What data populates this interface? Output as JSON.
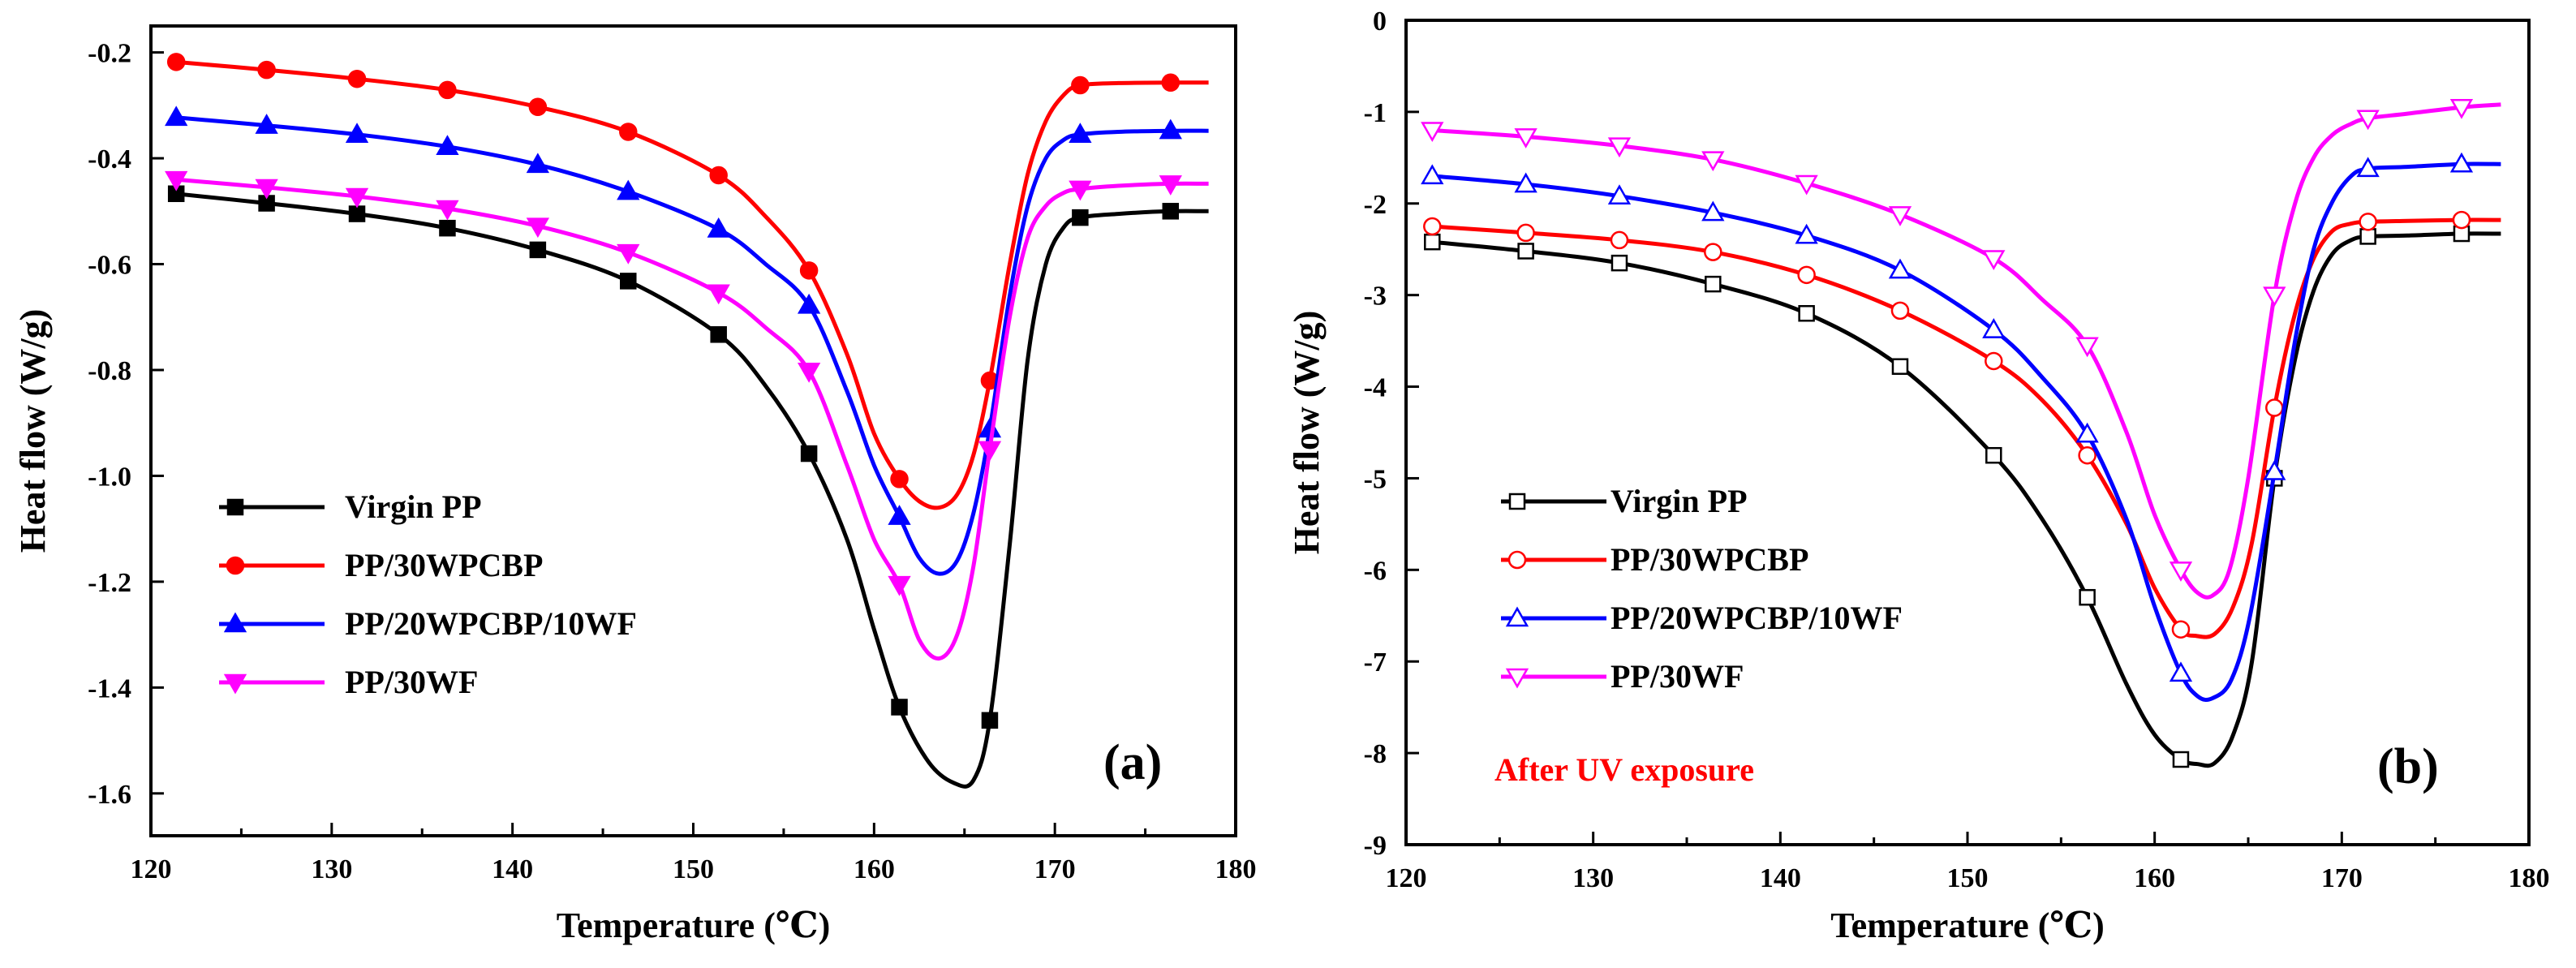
{
  "chart_data": [
    {
      "panel": "(a)",
      "type": "line",
      "title": "",
      "xlabel": "Temperature (℃)",
      "ylabel": "Heat flow (W/g)",
      "xlim": [
        120,
        180
      ],
      "ylim": [
        -1.68,
        -0.15
      ],
      "x_ticks": [
        120,
        130,
        140,
        150,
        160,
        170,
        180
      ],
      "x_tick_labels": [
        "120",
        "130",
        "140",
        "150",
        "160",
        "170",
        "180"
      ],
      "y_ticks": [
        -0.2,
        -0.4,
        -0.6,
        -0.8,
        -1.0,
        -1.2,
        -1.4,
        -1.6
      ],
      "y_tick_labels": [
        "-0.2",
        "-0.4",
        "-0.6",
        "-0.8",
        "-1.0",
        "-1.2",
        "-1.4",
        "-1.6"
      ],
      "legend_position": "bottom-left",
      "annotations": [],
      "series": [
        {
          "name": "Virgin PP",
          "color": "#000000",
          "marker": "square",
          "filled": true,
          "x": [
            121.4,
            126.4,
            131.4,
            136.4,
            141.4,
            146.4,
            151.4,
            154,
            156.4,
            158.5,
            160,
            161.4,
            163,
            164.4,
            165.5,
            166.4,
            167.5,
            168.5,
            169.5,
            170.5,
            171.4,
            173.5,
            176.4,
            178.5
          ],
          "y": [
            -0.467,
            -0.485,
            -0.505,
            -0.532,
            -0.573,
            -0.632,
            -0.733,
            -0.83,
            -0.958,
            -1.12,
            -1.29,
            -1.437,
            -1.54,
            -1.58,
            -1.575,
            -1.462,
            -1.13,
            -0.78,
            -0.6,
            -0.53,
            -0.512,
            -0.505,
            -0.5,
            -0.5
          ]
        },
        {
          "name": "PP/30WPCBP",
          "color": "#ff0000",
          "marker": "circle",
          "filled": true,
          "x": [
            121.4,
            126.4,
            131.4,
            136.4,
            141.4,
            146.4,
            151.4,
            154,
            156.4,
            158.5,
            160,
            161.4,
            162.5,
            163.6,
            164.6,
            165.5,
            166.4,
            167.5,
            168.5,
            169.5,
            170.5,
            171.4,
            173.5,
            176.4,
            178.5
          ],
          "y": [
            -0.218,
            -0.233,
            -0.25,
            -0.271,
            -0.303,
            -0.35,
            -0.432,
            -0.51,
            -0.612,
            -0.77,
            -0.92,
            -1.006,
            -1.048,
            -1.06,
            -1.035,
            -0.96,
            -0.82,
            -0.6,
            -0.43,
            -0.33,
            -0.28,
            -0.262,
            -0.258,
            -0.257,
            -0.257
          ]
        },
        {
          "name": "PP/20WPCBP/10WF",
          "color": "#0000ff",
          "marker": "triangle-up",
          "filled": true,
          "x": [
            121.4,
            126.4,
            131.4,
            136.4,
            141.4,
            146.4,
            151.4,
            154,
            156.4,
            158.5,
            160,
            161.4,
            162.5,
            163.6,
            164.6,
            165.5,
            166.4,
            167.5,
            168.5,
            169.5,
            170.5,
            171.4,
            173.5,
            176.4,
            178.5
          ],
          "y": [
            -0.323,
            -0.338,
            -0.355,
            -0.378,
            -0.412,
            -0.463,
            -0.534,
            -0.6,
            -0.678,
            -0.84,
            -0.98,
            -1.077,
            -1.155,
            -1.185,
            -1.16,
            -1.07,
            -0.912,
            -0.66,
            -0.49,
            -0.4,
            -0.365,
            -0.355,
            -0.35,
            -0.348,
            -0.348
          ]
        },
        {
          "name": "PP/30WF",
          "color": "#ff00ff",
          "marker": "triangle-down",
          "filled": true,
          "x": [
            121.4,
            126.4,
            131.4,
            136.4,
            141.4,
            146.4,
            151.4,
            154,
            156.4,
            158.5,
            160,
            161.4,
            162.5,
            163.6,
            164.6,
            165.5,
            166.4,
            167.5,
            168.5,
            169.5,
            170.5,
            171.4,
            173.5,
            176.4,
            178.5
          ],
          "y": [
            -0.44,
            -0.455,
            -0.472,
            -0.495,
            -0.528,
            -0.578,
            -0.654,
            -0.72,
            -0.802,
            -0.98,
            -1.12,
            -1.205,
            -1.31,
            -1.345,
            -1.3,
            -1.17,
            -0.95,
            -0.7,
            -0.55,
            -0.49,
            -0.465,
            -0.458,
            -0.452,
            -0.448,
            -0.448
          ]
        }
      ]
    },
    {
      "panel": "(b)",
      "type": "line",
      "title": "",
      "xlabel": "Temperature (℃)",
      "ylabel": "Heat flow (W/g)",
      "xlim": [
        120,
        180
      ],
      "ylim": [
        -9,
        0
      ],
      "x_ticks": [
        120,
        130,
        140,
        150,
        160,
        170,
        180
      ],
      "x_tick_labels": [
        "120",
        "130",
        "140",
        "150",
        "160",
        "170",
        "180"
      ],
      "y_ticks": [
        0,
        -1,
        -2,
        -3,
        -4,
        -5,
        -6,
        -7,
        -8,
        -9
      ],
      "y_tick_labels": [
        "0",
        "-1",
        "-2",
        "-3",
        "-4",
        "-5",
        "-6",
        "-7",
        "-8",
        "-9"
      ],
      "legend_position": "bottom-left",
      "annotations": [
        {
          "text": "After UV exposure",
          "color": "#ff0000",
          "position": "bottom-left"
        }
      ],
      "series": [
        {
          "name": "Virgin PP",
          "color": "#000000",
          "marker": "square",
          "filled": false,
          "x": [
            121.4,
            126.4,
            131.4,
            136.4,
            141.4,
            146.4,
            151.4,
            154,
            156.4,
            158.5,
            160,
            161.4,
            162.3,
            163.2,
            164.2,
            165.2,
            166.4,
            167.5,
            168.5,
            169.5,
            170.5,
            171.4,
            173.5,
            176.4,
            178.5
          ],
          "y": [
            -2.42,
            -2.52,
            -2.65,
            -2.88,
            -3.2,
            -3.78,
            -4.75,
            -5.45,
            -6.3,
            -7.25,
            -7.8,
            -8.07,
            -8.12,
            -8.11,
            -7.8,
            -7.0,
            -5.0,
            -3.7,
            -2.95,
            -2.55,
            -2.4,
            -2.36,
            -2.35,
            -2.33,
            -2.33
          ]
        },
        {
          "name": "PP/30WPCBP",
          "color": "#ff0000",
          "marker": "circle",
          "filled": false,
          "x": [
            121.4,
            126.4,
            131.4,
            136.4,
            141.4,
            146.4,
            151.4,
            154,
            156.4,
            158.5,
            160,
            161.4,
            162.2,
            163.2,
            164.2,
            165.2,
            166.4,
            167.5,
            168.5,
            169.5,
            170.5,
            171.4,
            173.5,
            176.4,
            178.5
          ],
          "y": [
            -2.25,
            -2.32,
            -2.4,
            -2.53,
            -2.78,
            -3.17,
            -3.72,
            -4.15,
            -4.75,
            -5.5,
            -6.2,
            -6.65,
            -6.72,
            -6.7,
            -6.4,
            -5.7,
            -4.23,
            -3.2,
            -2.6,
            -2.3,
            -2.22,
            -2.2,
            -2.19,
            -2.18,
            -2.18
          ]
        },
        {
          "name": "PP/20WPCBP/10WF",
          "color": "#0000ff",
          "marker": "triangle-up",
          "filled": false,
          "x": [
            121.4,
            126.4,
            131.4,
            136.4,
            141.4,
            146.4,
            151.4,
            154,
            156.4,
            158.5,
            160,
            161.4,
            162.3,
            163.1,
            164.1,
            165.1,
            166.4,
            167.5,
            168.5,
            169.5,
            170.5,
            171.4,
            173.5,
            176.4,
            178.5
          ],
          "y": [
            -1.7,
            -1.79,
            -1.92,
            -2.1,
            -2.35,
            -2.73,
            -3.38,
            -3.9,
            -4.52,
            -5.45,
            -6.4,
            -7.13,
            -7.38,
            -7.4,
            -7.2,
            -6.5,
            -4.93,
            -3.5,
            -2.5,
            -1.98,
            -1.7,
            -1.62,
            -1.6,
            -1.57,
            -1.57
          ]
        },
        {
          "name": "PP/30WF",
          "color": "#ff00ff",
          "marker": "triangle-down",
          "filled": false,
          "x": [
            121.4,
            126.4,
            131.4,
            136.4,
            141.4,
            146.4,
            151.4,
            154,
            156.4,
            158.5,
            160,
            161.4,
            162.3,
            163.1,
            164.0,
            165.0,
            166.4,
            167.5,
            168.5,
            169.5,
            170.5,
            171.4,
            173.5,
            176.4,
            178.5
          ],
          "y": [
            -1.2,
            -1.27,
            -1.37,
            -1.52,
            -1.78,
            -2.12,
            -2.6,
            -3.05,
            -3.55,
            -4.5,
            -5.4,
            -6.0,
            -6.25,
            -6.28,
            -6.0,
            -5.0,
            -3.0,
            -2.0,
            -1.5,
            -1.25,
            -1.13,
            -1.07,
            -1.02,
            -0.95,
            -0.92
          ]
        }
      ]
    }
  ]
}
